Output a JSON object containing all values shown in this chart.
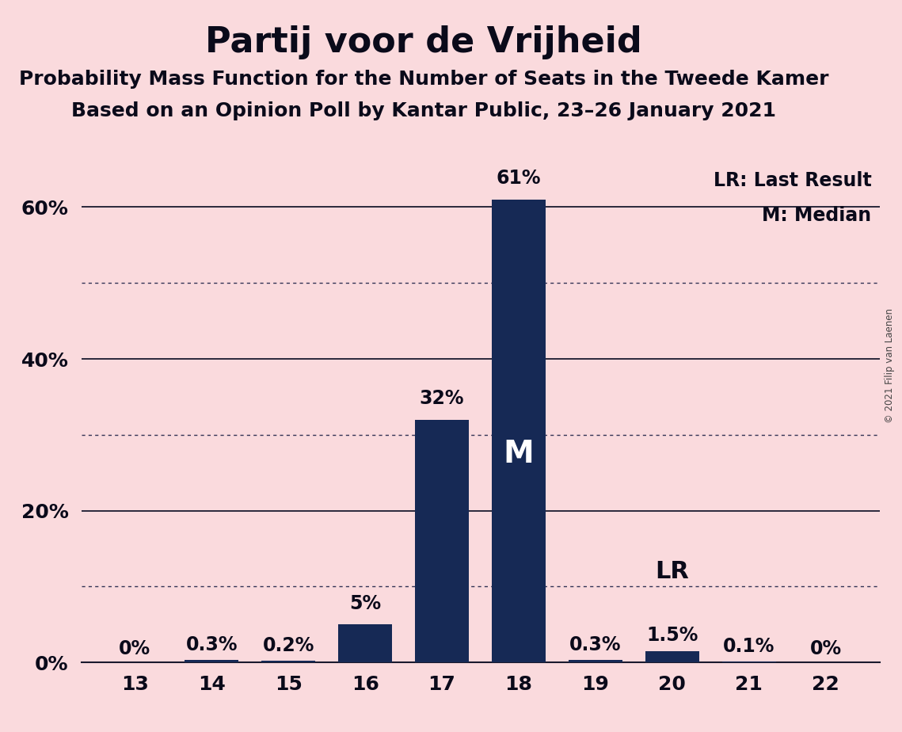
{
  "title": "Partij voor de Vrijheid",
  "subtitle1": "Probability Mass Function for the Number of Seats in the Tweede Kamer",
  "subtitle2": "Based on an Opinion Poll by Kantar Public, 23–26 January 2021",
  "copyright": "© 2021 Filip van Laenen",
  "categories": [
    13,
    14,
    15,
    16,
    17,
    18,
    19,
    20,
    21,
    22
  ],
  "values": [
    0.0,
    0.3,
    0.2,
    5.0,
    32.0,
    61.0,
    0.3,
    1.5,
    0.1,
    0.0
  ],
  "labels": [
    "0%",
    "0.3%",
    "0.2%",
    "5%",
    "32%",
    "61%",
    "0.3%",
    "1.5%",
    "0.1%",
    "0%"
  ],
  "bar_color": "#162955",
  "background_color": "#fadadd",
  "median_bar": 18,
  "lr_bar": 20,
  "ylim": [
    0,
    68
  ],
  "yticks": [
    0,
    20,
    40,
    60
  ],
  "ytick_labels": [
    "0%",
    "20%",
    "40%",
    "60%"
  ],
  "solid_gridlines": [
    20,
    40,
    60
  ],
  "dotted_gridlines": [
    10,
    30,
    50
  ],
  "legend_lr": "LR: Last Result",
  "legend_m": "M: Median",
  "title_fontsize": 32,
  "subtitle_fontsize": 18,
  "label_fontsize": 17,
  "tick_fontsize": 18,
  "bar_width": 0.7
}
